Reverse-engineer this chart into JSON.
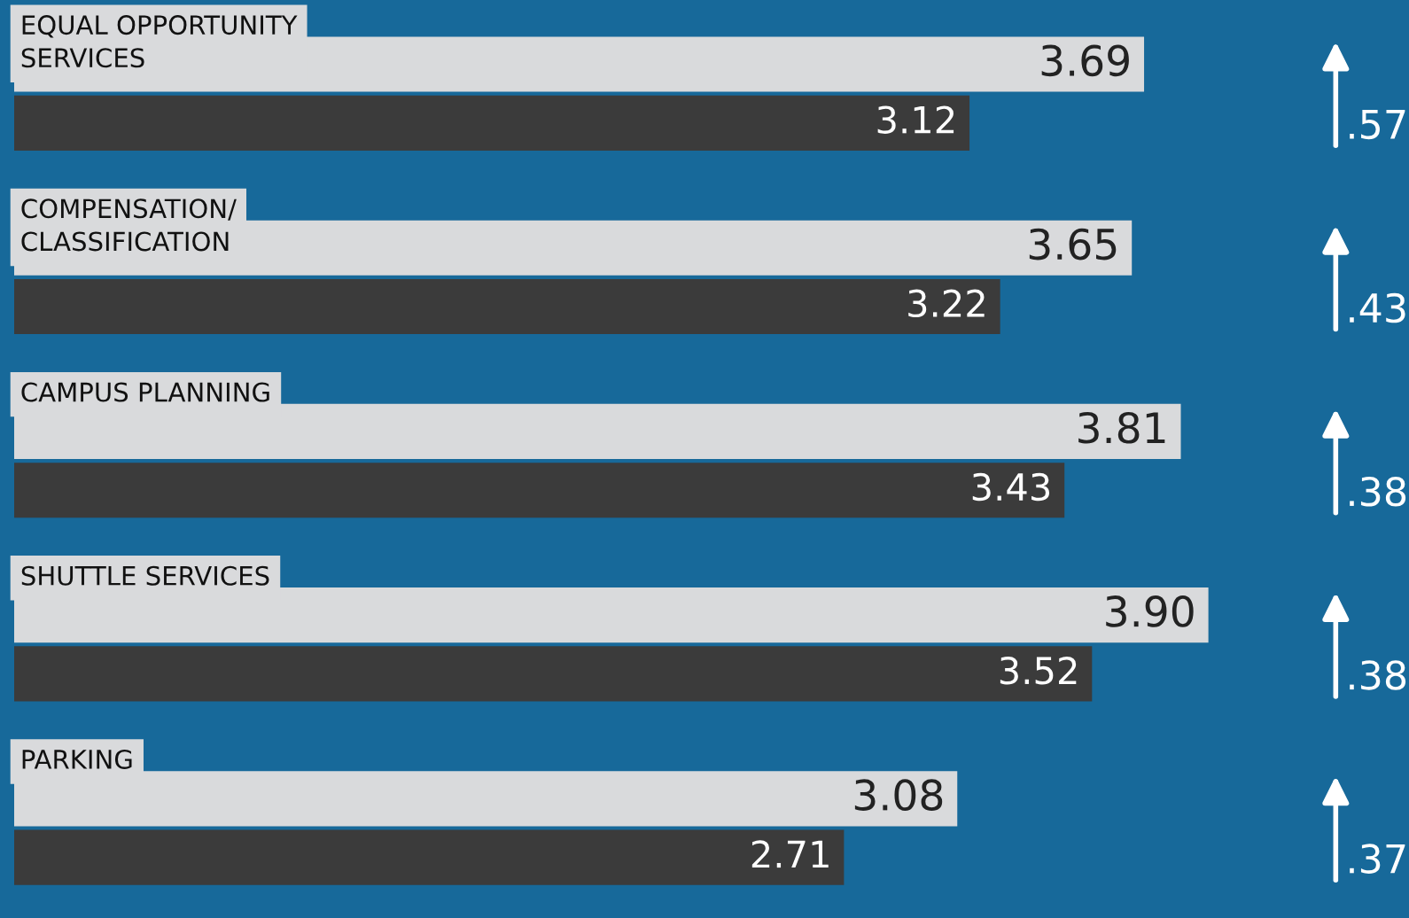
{
  "chart_data": {
    "type": "bar",
    "orientation": "horizontal",
    "categories": [
      "EQUAL OPPORTUNITY\nSERVICES",
      "COMPENSATION/\nCLASSIFICATION",
      "CAMPUS PLANNING",
      "SHUTTLE SERVICES",
      "PARKING"
    ],
    "series": [
      {
        "color": "#d9dadc",
        "values": [
          3.69,
          3.65,
          3.81,
          3.9,
          3.08
        ],
        "value_labels": [
          "3.69",
          "3.65",
          "3.81",
          "3.90",
          "3.08"
        ]
      },
      {
        "color": "#3b3b3b",
        "values": [
          3.12,
          3.22,
          3.43,
          3.52,
          2.71
        ],
        "value_labels": [
          "3.12",
          "3.22",
          "3.43",
          "3.52",
          "2.71"
        ]
      }
    ],
    "legend": false,
    "annotations": [
      ".57",
      ".43",
      ".38",
      ".38",
      ".37"
    ]
  }
}
